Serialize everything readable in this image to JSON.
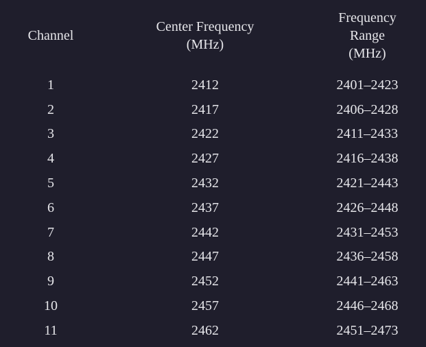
{
  "table": {
    "headers": {
      "channel": "Channel",
      "center_line1": "Center Frequency",
      "center_line2": "(MHz)",
      "range_line1": "Frequency",
      "range_line2": "Range",
      "range_line3": "(MHz)"
    },
    "rows": [
      {
        "channel": "1",
        "center": "2412",
        "range": "2401–2423"
      },
      {
        "channel": "2",
        "center": "2417",
        "range": "2406–2428"
      },
      {
        "channel": "3",
        "center": "2422",
        "range": "2411–2433"
      },
      {
        "channel": "4",
        "center": "2427",
        "range": "2416–2438"
      },
      {
        "channel": "5",
        "center": "2432",
        "range": "2421–2443"
      },
      {
        "channel": "6",
        "center": "2437",
        "range": "2426–2448"
      },
      {
        "channel": "7",
        "center": "2442",
        "range": "2431–2453"
      },
      {
        "channel": "8",
        "center": "2447",
        "range": "2436–2458"
      },
      {
        "channel": "9",
        "center": "2452",
        "range": "2441–2463"
      },
      {
        "channel": "10",
        "center": "2457",
        "range": "2446–2468"
      },
      {
        "channel": "11",
        "center": "2462",
        "range": "2451–2473"
      }
    ]
  },
  "colors": {
    "background": "#1f1e2c",
    "text": "#e6e6ea"
  }
}
